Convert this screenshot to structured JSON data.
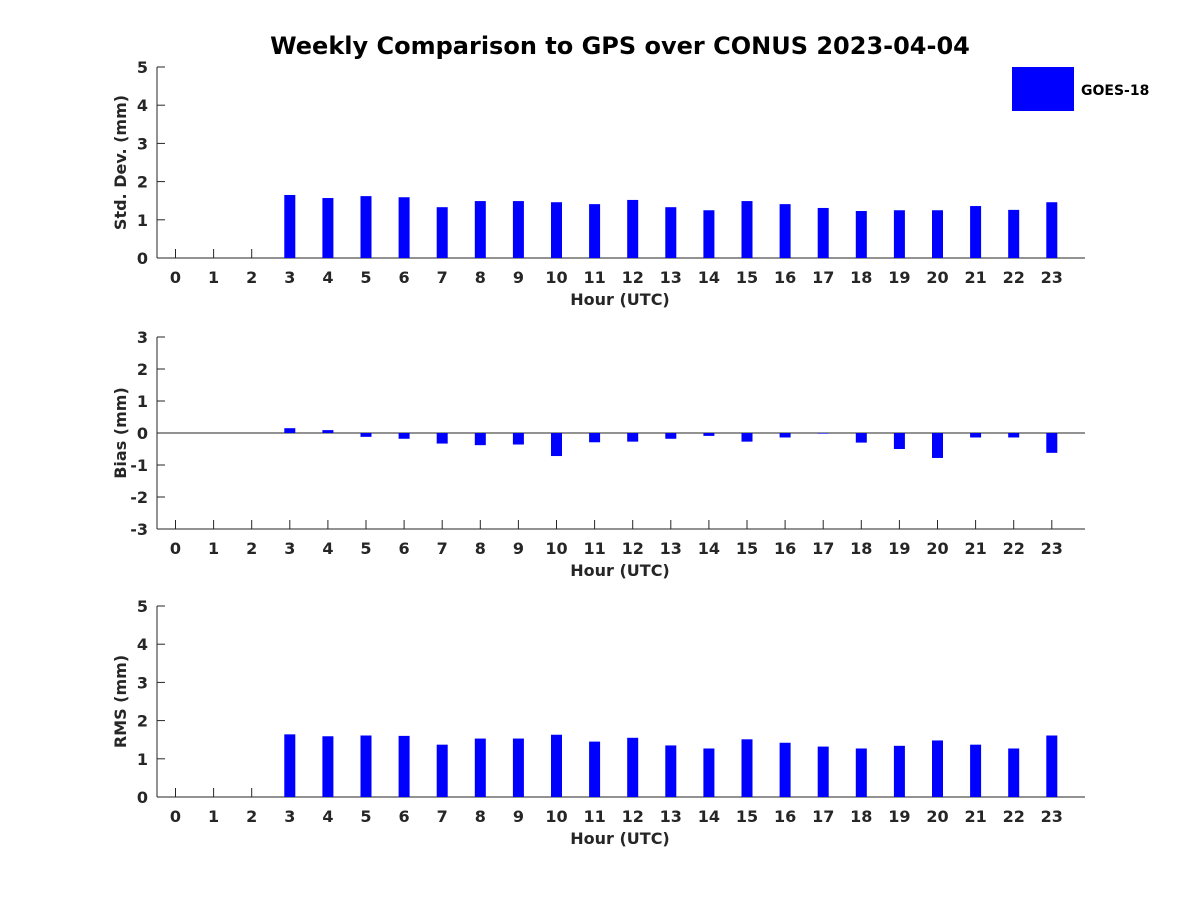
{
  "title": "Weekly Comparison to GPS over CONUS 2023-04-04",
  "legend": {
    "label": "GOES-18",
    "color": "#0000ff",
    "placement": "top-right"
  },
  "bar_color": "#0000ff",
  "chart_data": [
    {
      "type": "bar",
      "series": [
        {
          "name": "GOES-18",
          "values": [
            null,
            null,
            null,
            1.65,
            1.57,
            1.62,
            1.59,
            1.33,
            1.49,
            1.49,
            1.46,
            1.41,
            1.52,
            1.33,
            1.25,
            1.49,
            1.41,
            1.31,
            1.23,
            1.25,
            1.25,
            1.36,
            1.26,
            1.46
          ]
        }
      ],
      "categories": [
        "0",
        "1",
        "2",
        "3",
        "4",
        "5",
        "6",
        "7",
        "8",
        "9",
        "10",
        "11",
        "12",
        "13",
        "14",
        "15",
        "16",
        "17",
        "18",
        "19",
        "20",
        "21",
        "22",
        "23"
      ],
      "xlabel": "Hour (UTC)",
      "ylabel": "Std. Dev. (mm)",
      "ylim": [
        0,
        5
      ],
      "yticks": [
        0,
        1,
        2,
        3,
        4,
        5
      ],
      "grid": false
    },
    {
      "type": "bar",
      "series": [
        {
          "name": "GOES-18",
          "values": [
            null,
            null,
            null,
            0.15,
            0.09,
            -0.12,
            -0.18,
            -0.33,
            -0.38,
            -0.36,
            -0.72,
            -0.29,
            -0.27,
            -0.18,
            -0.09,
            -0.27,
            -0.14,
            -0.02,
            -0.3,
            -0.5,
            -0.78,
            -0.14,
            -0.14,
            -0.62
          ]
        }
      ],
      "categories": [
        "0",
        "1",
        "2",
        "3",
        "4",
        "5",
        "6",
        "7",
        "8",
        "9",
        "10",
        "11",
        "12",
        "13",
        "14",
        "15",
        "16",
        "17",
        "18",
        "19",
        "20",
        "21",
        "22",
        "23"
      ],
      "xlabel": "Hour (UTC)",
      "ylabel": "Bias (mm)",
      "ylim": [
        -3,
        3
      ],
      "yticks": [
        -3,
        -2,
        -1,
        0,
        1,
        2,
        3
      ],
      "grid": false
    },
    {
      "type": "bar",
      "series": [
        {
          "name": "GOES-18",
          "values": [
            null,
            null,
            null,
            1.64,
            1.59,
            1.61,
            1.6,
            1.37,
            1.53,
            1.53,
            1.63,
            1.45,
            1.55,
            1.35,
            1.27,
            1.51,
            1.42,
            1.32,
            1.27,
            1.34,
            1.48,
            1.37,
            1.27,
            1.61
          ]
        }
      ],
      "categories": [
        "0",
        "1",
        "2",
        "3",
        "4",
        "5",
        "6",
        "7",
        "8",
        "9",
        "10",
        "11",
        "12",
        "13",
        "14",
        "15",
        "16",
        "17",
        "18",
        "19",
        "20",
        "21",
        "22",
        "23"
      ],
      "xlabel": "Hour (UTC)",
      "ylabel": "RMS (mm)",
      "ylim": [
        0,
        5
      ],
      "yticks": [
        0,
        1,
        2,
        3,
        4,
        5
      ],
      "grid": false
    }
  ]
}
